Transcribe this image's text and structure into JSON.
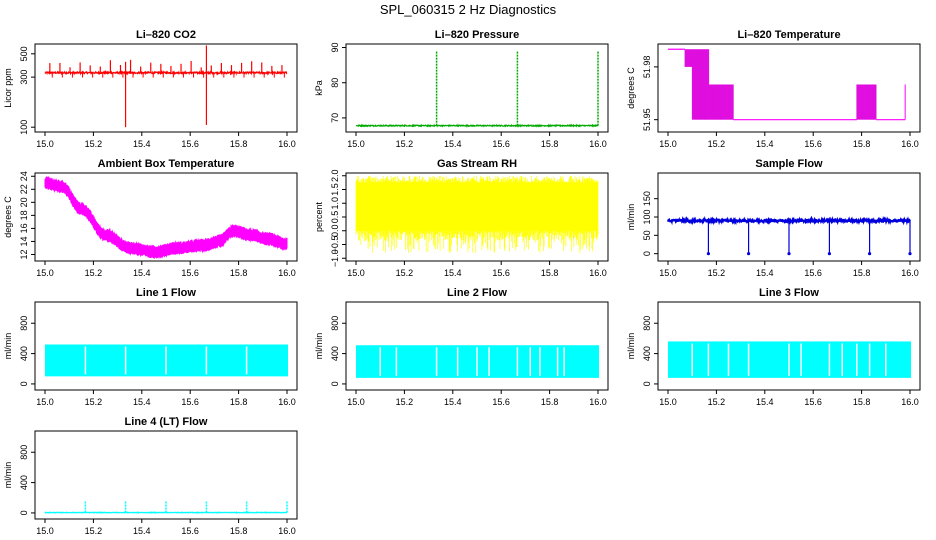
{
  "figure_title": "SPL_060315  2 Hz Diagnostics",
  "chart_data": [
    {
      "id": "co2",
      "type": "line",
      "title": "Li–820 CO2",
      "ylabel": "Licor ppm",
      "xlabel": "",
      "color": "#ff0000",
      "ylog": true,
      "xlim": [
        15.0,
        16.0
      ],
      "ylim": [
        90,
        620
      ],
      "xticks": [
        15.0,
        15.2,
        15.4,
        15.6,
        15.8,
        16.0
      ],
      "xtick_labels": [
        "15.0",
        "15.2",
        "15.4",
        "15.6",
        "15.8",
        "16.0"
      ],
      "yticks": [
        100,
        300,
        500
      ],
      "ytick_labels": [
        "100",
        "300",
        "500"
      ],
      "signal": {
        "kind": "spiky",
        "base": 330,
        "noise": 6,
        "spike_step": 0.0417,
        "spike_value": 410,
        "big_spikes": [
          {
            "x": 15.333,
            "up": 420,
            "down": 100
          },
          {
            "x": 15.667,
            "up": 600,
            "down": 105
          }
        ]
      }
    },
    {
      "id": "pressure",
      "type": "line",
      "title": "Li–820 Pressure",
      "ylabel": "kPa",
      "xlabel": "",
      "color": "#00aa00",
      "xlim": [
        15.0,
        16.0
      ],
      "ylim": [
        66,
        91
      ],
      "xticks": [
        15.0,
        15.2,
        15.4,
        15.6,
        15.8,
        16.0
      ],
      "xtick_labels": [
        "15.0",
        "15.2",
        "15.4",
        "15.6",
        "15.8",
        "16.0"
      ],
      "yticks": [
        70,
        80,
        90
      ],
      "ytick_labels": [
        "70",
        "80",
        "90"
      ],
      "signal": {
        "kind": "flat_spikes",
        "base_start": 67.8,
        "base_end": 67.8,
        "noise": 0.15,
        "spikes": [
          15.333,
          15.667,
          16.0
        ],
        "spike_value": 89
      }
    },
    {
      "id": "temp820",
      "type": "line",
      "title": "Li–820 Temperature",
      "ylabel": "degrees C",
      "xlabel": "",
      "color": "#ff00ff",
      "xlim": [
        15.0,
        16.0
      ],
      "ylim": [
        51.943,
        51.993
      ],
      "xticks": [
        15.0,
        15.2,
        15.4,
        15.6,
        15.8,
        16.0
      ],
      "xtick_labels": [
        "15.0",
        "15.2",
        "15.4",
        "15.6",
        "15.8",
        "16.0"
      ],
      "yticks": [
        51.95,
        51.98
      ],
      "ytick_labels": [
        "51.95",
        "51.98"
      ],
      "signal": {
        "kind": "quantized",
        "levels": [
          51.99,
          51.98,
          51.97,
          51.96,
          51.95
        ],
        "segments": [
          [
            15.0,
            15.07,
            51.99,
            51.99
          ],
          [
            15.07,
            15.1,
            51.99,
            51.98
          ],
          [
            15.1,
            15.17,
            51.99,
            51.95
          ],
          [
            15.17,
            15.27,
            51.97,
            51.95
          ],
          [
            15.27,
            15.78,
            51.95,
            51.95
          ],
          [
            15.78,
            15.86,
            51.97,
            51.95
          ],
          [
            15.86,
            15.98,
            51.95,
            51.95
          ]
        ]
      }
    },
    {
      "id": "ambient",
      "type": "line",
      "title": "Ambient Box Temperature",
      "ylabel": "degrees C",
      "xlabel": "",
      "color": "#ff00ff",
      "xlim": [
        15.0,
        16.0
      ],
      "ylim": [
        11,
        24.5
      ],
      "xticks": [
        15.0,
        15.2,
        15.4,
        15.6,
        15.8,
        16.0
      ],
      "xtick_labels": [
        "15.0",
        "15.2",
        "15.4",
        "15.6",
        "15.8",
        "16.0"
      ],
      "yticks": [
        12,
        14,
        16,
        18,
        20,
        22,
        24
      ],
      "ytick_labels": [
        "12",
        "14",
        "16",
        "18",
        "20",
        "22",
        "24"
      ],
      "signal": {
        "kind": "band_curve",
        "halfwidth": 0.8,
        "knots": [
          [
            15.0,
            23.0
          ],
          [
            15.07,
            22.4
          ],
          [
            15.15,
            19.0
          ],
          [
            15.25,
            15.0
          ],
          [
            15.35,
            13.0
          ],
          [
            15.45,
            12.4
          ],
          [
            15.55,
            13.0
          ],
          [
            15.65,
            13.4
          ],
          [
            15.72,
            14.0
          ],
          [
            15.78,
            15.6
          ],
          [
            15.85,
            15.0
          ],
          [
            15.92,
            14.4
          ],
          [
            16.0,
            13.6
          ]
        ]
      }
    },
    {
      "id": "rh",
      "type": "line",
      "title": "Gas Stream RH",
      "ylabel": "percent",
      "xlabel": "",
      "color": "#ffff00",
      "xlim": [
        15.0,
        16.0
      ],
      "ylim": [
        -1.1,
        2.1
      ],
      "xticks": [
        15.0,
        15.2,
        15.4,
        15.6,
        15.8,
        16.0
      ],
      "xtick_labels": [
        "15.0",
        "15.2",
        "15.4",
        "15.6",
        "15.8",
        "16.0"
      ],
      "yticks": [
        -1.0,
        -0.5,
        0.0,
        0.5,
        1.0,
        1.5,
        2.0
      ],
      "ytick_labels": [
        "−1.0",
        "−0.5",
        "0.0",
        "0.5",
        "1.0",
        "1.5",
        "2.0"
      ],
      "signal": {
        "kind": "noise_band",
        "top": 1.75,
        "bottom": 0.0,
        "dip_min": -0.9
      }
    },
    {
      "id": "sample",
      "type": "line",
      "title": "Sample Flow",
      "ylabel": "ml/min",
      "xlabel": "",
      "color": "#0000dd",
      "xlim": [
        15.0,
        16.0
      ],
      "ylim": [
        -20,
        220
      ],
      "xticks": [
        15.0,
        15.2,
        15.4,
        15.6,
        15.8,
        16.0
      ],
      "xtick_labels": [
        "15.0",
        "15.2",
        "15.4",
        "15.6",
        "15.8",
        "16.0"
      ],
      "yticks": [
        0,
        50,
        100,
        150
      ],
      "ytick_labels": [
        "0",
        "50",
        "100",
        "150"
      ],
      "signal": {
        "kind": "flat_drops",
        "base": 90,
        "noise": 3,
        "drops": [
          15.167,
          15.333,
          15.5,
          15.667,
          15.833,
          16.0
        ],
        "drop_value": 0
      }
    },
    {
      "id": "line1",
      "type": "line",
      "title": "Line 1 Flow",
      "ylabel": "ml/min",
      "xlabel": "",
      "color": "#00ffff",
      "xlim": [
        15.0,
        16.0
      ],
      "ylim": [
        -80,
        1080
      ],
      "xticks": [
        15.0,
        15.2,
        15.4,
        15.6,
        15.8,
        16.0
      ],
      "xtick_labels": [
        "15.0",
        "15.2",
        "15.4",
        "15.6",
        "15.8",
        "16.0"
      ],
      "yticks": [
        0,
        400,
        800
      ],
      "ytick_labels": [
        "0",
        "400",
        "800"
      ],
      "signal": {
        "kind": "oscill_band",
        "top": 520,
        "bottom": 100,
        "gaps": [
          15.167,
          15.333,
          15.5,
          15.667,
          15.833
        ]
      }
    },
    {
      "id": "line2",
      "type": "line",
      "title": "Line 2 Flow",
      "ylabel": "ml/min",
      "xlabel": "",
      "color": "#00ffff",
      "xlim": [
        15.0,
        16.0
      ],
      "ylim": [
        -80,
        1080
      ],
      "xticks": [
        15.0,
        15.2,
        15.4,
        15.6,
        15.8,
        16.0
      ],
      "xtick_labels": [
        "15.0",
        "15.2",
        "15.4",
        "15.6",
        "15.8",
        "16.0"
      ],
      "yticks": [
        0,
        400,
        800
      ],
      "ytick_labels": [
        "0",
        "400",
        "800"
      ],
      "signal": {
        "kind": "oscill_band",
        "top": 510,
        "bottom": 80,
        "gaps": [
          15.1,
          15.167,
          15.333,
          15.42,
          15.5,
          15.55,
          15.667,
          15.72,
          15.76,
          15.833,
          15.86
        ]
      }
    },
    {
      "id": "line3",
      "type": "line",
      "title": "Line 3 Flow",
      "ylabel": "ml/min",
      "xlabel": "",
      "color": "#00ffff",
      "xlim": [
        15.0,
        16.0
      ],
      "ylim": [
        -80,
        1080
      ],
      "xticks": [
        15.0,
        15.2,
        15.4,
        15.6,
        15.8,
        16.0
      ],
      "xtick_labels": [
        "15.0",
        "15.2",
        "15.4",
        "15.6",
        "15.8",
        "16.0"
      ],
      "yticks": [
        0,
        400,
        800
      ],
      "ytick_labels": [
        "0",
        "400",
        "800"
      ],
      "signal": {
        "kind": "oscill_band",
        "top": 560,
        "bottom": 80,
        "gaps": [
          15.1,
          15.167,
          15.25,
          15.333,
          15.5,
          15.55,
          15.667,
          15.72,
          15.78,
          15.833,
          15.9
        ]
      }
    },
    {
      "id": "line4",
      "type": "line",
      "title": "Line 4 (LT) Flow",
      "ylabel": "ml/min",
      "xlabel": "",
      "color": "#00ffff",
      "xlim": [
        15.0,
        16.0
      ],
      "ylim": [
        -80,
        1080
      ],
      "xticks": [
        15.0,
        15.2,
        15.4,
        15.6,
        15.8,
        16.0
      ],
      "xtick_labels": [
        "15.0",
        "15.2",
        "15.4",
        "15.6",
        "15.8",
        "16.0"
      ],
      "yticks": [
        0,
        400,
        800
      ],
      "ytick_labels": [
        "0",
        "400",
        "800"
      ],
      "signal": {
        "kind": "flat_spikes",
        "base_start": 5,
        "base_end": 5,
        "noise": 4,
        "spikes": [
          15.167,
          15.333,
          15.5,
          15.667,
          15.833,
          16.0
        ],
        "spike_value": 150
      }
    }
  ]
}
